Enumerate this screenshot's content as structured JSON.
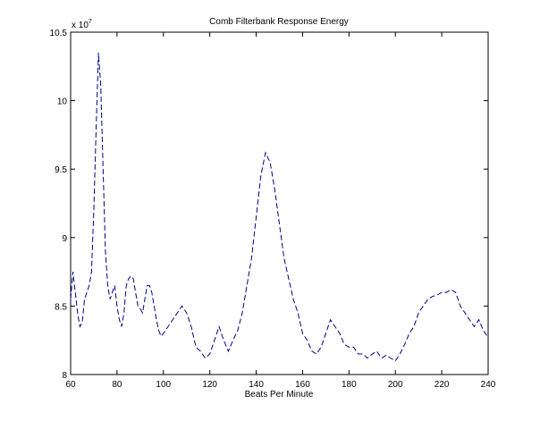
{
  "chart_data": {
    "type": "line",
    "title": "Comb Filterbank Response Energy",
    "xlabel": "Beats Per Minute",
    "y_multiplier": {
      "base": "x 10",
      "exponent": "7"
    },
    "x": [
      60,
      61,
      62,
      63,
      64,
      65,
      66,
      67,
      68,
      69,
      70,
      71,
      72,
      73,
      74,
      75,
      76,
      77,
      78,
      79,
      80,
      81,
      82,
      83,
      84,
      85,
      86,
      87,
      88,
      89,
      90,
      91,
      92,
      93,
      94,
      95,
      96,
      97,
      98,
      99,
      100,
      102,
      104,
      106,
      108,
      110,
      112,
      114,
      116,
      118,
      120,
      122,
      124,
      126,
      128,
      130,
      132,
      134,
      136,
      138,
      140,
      142,
      144,
      146,
      148,
      150,
      152,
      154,
      156,
      158,
      160,
      162,
      164,
      166,
      168,
      170,
      172,
      174,
      176,
      178,
      180,
      182,
      184,
      186,
      188,
      190,
      192,
      194,
      196,
      198,
      200,
      202,
      204,
      206,
      208,
      210,
      212,
      214,
      216,
      218,
      220,
      222,
      224,
      226,
      228,
      230,
      232,
      234,
      236,
      238,
      240
    ],
    "series": [
      {
        "color": "#00008b",
        "values": [
          8.55,
          8.75,
          8.6,
          8.45,
          8.35,
          8.38,
          8.55,
          8.6,
          8.65,
          8.75,
          9.2,
          9.8,
          10.35,
          10.1,
          9.5,
          8.9,
          8.65,
          8.55,
          8.6,
          8.65,
          8.5,
          8.4,
          8.35,
          8.45,
          8.65,
          8.7,
          8.72,
          8.7,
          8.6,
          8.5,
          8.48,
          8.45,
          8.55,
          8.65,
          8.65,
          8.6,
          8.5,
          8.4,
          8.32,
          8.28,
          8.3,
          8.35,
          8.4,
          8.45,
          8.5,
          8.45,
          8.35,
          8.2,
          8.17,
          8.12,
          8.15,
          8.25,
          8.35,
          8.25,
          8.17,
          8.25,
          8.32,
          8.45,
          8.65,
          8.85,
          9.15,
          9.45,
          9.62,
          9.55,
          9.35,
          9.1,
          8.85,
          8.7,
          8.55,
          8.45,
          8.3,
          8.25,
          8.17,
          8.15,
          8.2,
          8.3,
          8.4,
          8.35,
          8.3,
          8.22,
          8.2,
          8.2,
          8.15,
          8.15,
          8.12,
          8.15,
          8.17,
          8.12,
          8.14,
          8.12,
          8.1,
          8.15,
          8.22,
          8.3,
          8.35,
          8.45,
          8.5,
          8.55,
          8.57,
          8.58,
          8.6,
          8.6,
          8.62,
          8.6,
          8.5,
          8.45,
          8.4,
          8.35,
          8.4,
          8.32,
          8.27
        ]
      }
    ],
    "xlim": [
      60,
      240
    ],
    "xticks": [
      60,
      80,
      100,
      120,
      140,
      160,
      180,
      200,
      220,
      240
    ],
    "ylim": [
      8,
      10.5
    ],
    "yticks": [
      8,
      8.5,
      9,
      9.5,
      10,
      10.5
    ],
    "grid": false,
    "line_style": "dashed"
  }
}
